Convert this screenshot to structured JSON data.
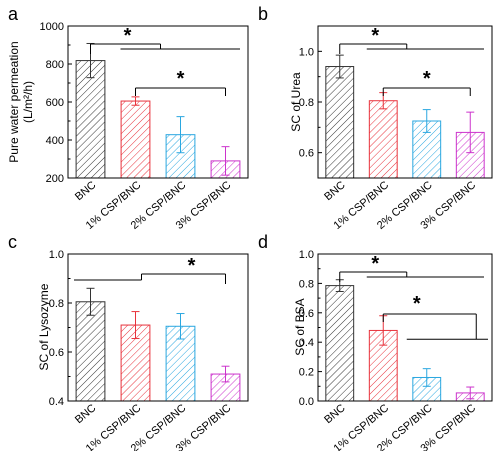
{
  "figure": {
    "colors": {
      "BNC": "#333333",
      "1% CSP/BNC": "#e8323c",
      "2% CSP/BNC": "#2aa7e0",
      "3% CSP/BNC": "#cc33cc"
    }
  },
  "chart_data": [
    {
      "panel": "a",
      "type": "bar",
      "categories": [
        "BNC",
        "1% CSP/BNC",
        "2% CSP/BNC",
        "3% CSP/BNC"
      ],
      "values": [
        818,
        605,
        428,
        290
      ],
      "errors": [
        90,
        22,
        95,
        75
      ],
      "ylabel_lines": [
        "Pure water permeation",
        "(L/m²/h)"
      ],
      "ylim": [
        200,
        1000
      ],
      "yticks": [
        200,
        400,
        600,
        800,
        1000
      ],
      "ytick_labels": [
        "200",
        "400",
        "600",
        "800",
        "1000"
      ],
      "significance": [
        {
          "label": "*",
          "type": "nested",
          "outer": [
            1,
            2,
            3
          ],
          "pivot": 0
        },
        {
          "label": "*",
          "type": "bracket",
          "from": 1,
          "to": 3
        }
      ]
    },
    {
      "panel": "b",
      "type": "bar",
      "categories": [
        "BNC",
        "1% CSP/BNC",
        "2% CSP/BNC",
        "3% CSP/BNC"
      ],
      "values": [
        0.94,
        0.805,
        0.725,
        0.68
      ],
      "errors": [
        0.045,
        0.032,
        0.045,
        0.08
      ],
      "ylabel_lines": [
        "SC of Urea"
      ],
      "ylim": [
        0.5,
        1.1
      ],
      "yticks": [
        0.6,
        0.8,
        1.0
      ],
      "ytick_labels": [
        "0.6",
        "0.8",
        "1.0"
      ],
      "significance": [
        {
          "label": "*",
          "type": "nested",
          "outer": [
            1,
            2,
            3
          ],
          "pivot": 0
        },
        {
          "label": "*",
          "type": "bracket",
          "from": 1,
          "to": 3
        }
      ]
    },
    {
      "panel": "c",
      "type": "bar",
      "categories": [
        "BNC",
        "1% CSP/BNC",
        "2% CSP/BNC",
        "3% CSP/BNC"
      ],
      "values": [
        0.805,
        0.71,
        0.705,
        0.51
      ],
      "errors": [
        0.055,
        0.055,
        0.052,
        0.032
      ],
      "ylabel_lines": [
        "SC of Lysozyme"
      ],
      "ylim": [
        0.4,
        1.0
      ],
      "yticks": [
        0.4,
        0.6,
        0.8,
        1.0
      ],
      "ytick_labels": [
        "0.4",
        "0.6",
        "0.8",
        "1.0"
      ],
      "significance": [
        {
          "label": "*",
          "type": "nested-right",
          "outer": [
            0,
            1,
            2
          ],
          "pivot": 3
        }
      ]
    },
    {
      "panel": "d",
      "type": "bar",
      "categories": [
        "BNC",
        "1% CSP/BNC",
        "2% CSP/BNC",
        "3% CSP/BNC"
      ],
      "values": [
        0.785,
        0.48,
        0.16,
        0.055
      ],
      "errors": [
        0.04,
        0.1,
        0.06,
        0.04
      ],
      "ylabel_lines": [
        "SC of BSA"
      ],
      "ylim": [
        0.0,
        1.0
      ],
      "yticks": [
        0.0,
        0.2,
        0.4,
        0.6,
        0.8,
        1.0
      ],
      "ytick_labels": [
        "0.0",
        "0.2",
        "0.4",
        "0.6",
        "0.8",
        "1.0"
      ],
      "significance": [
        {
          "label": "*",
          "type": "nested",
          "outer": [
            1,
            2,
            3
          ],
          "pivot": 0
        },
        {
          "label": "*",
          "type": "nested",
          "outer": [
            2,
            3
          ],
          "pivot": 1
        }
      ]
    }
  ]
}
